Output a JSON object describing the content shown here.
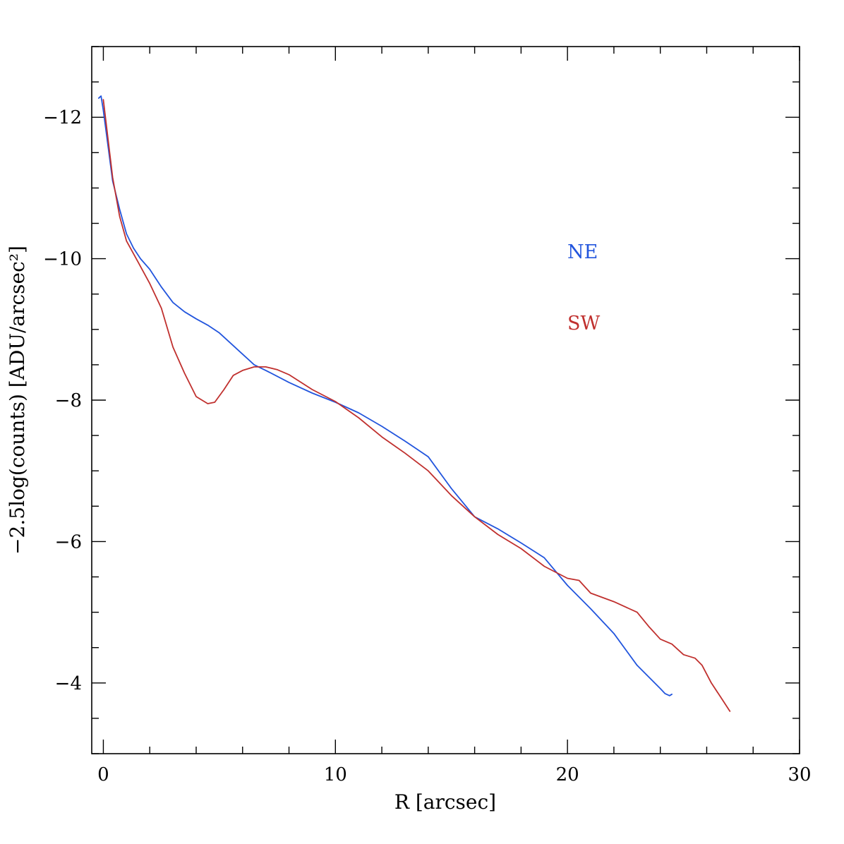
{
  "chart_data": {
    "type": "line",
    "title": "",
    "xlabel": "R [arcsec]",
    "ylabel": "−2.5log(counts) [ADU/arcsec²]",
    "xlim": [
      -0.5,
      30
    ],
    "ylim": [
      -3,
      -13
    ],
    "y_inverted": true,
    "grid": false,
    "x_ticks": {
      "major": [
        0,
        10,
        20,
        30
      ],
      "minor_step": 2,
      "labels": [
        "0",
        "10",
        "20",
        "30"
      ]
    },
    "y_ticks": {
      "major": [
        -12,
        -10,
        -8,
        -6,
        -4
      ],
      "minor_step": 0.5,
      "labels": [
        "−12",
        "−10",
        "−8",
        "−6",
        "−4"
      ]
    },
    "legend": {
      "placement": "right-middle",
      "entries": [
        {
          "label": "NE",
          "color": "#2255dd"
        },
        {
          "label": "SW",
          "color": "#c0302e"
        }
      ]
    },
    "series": [
      {
        "name": "NE",
        "color": "#2255dd",
        "x": [
          -0.2,
          -0.1,
          0.0,
          0.2,
          0.4,
          0.7,
          1.0,
          1.3,
          1.6,
          2.0,
          2.5,
          3.0,
          3.5,
          4.0,
          4.5,
          5.0,
          5.5,
          6.0,
          6.5,
          7.0,
          8.0,
          9.0,
          10.0,
          11.0,
          12.0,
          13.0,
          14.0,
          15.0,
          16.0,
          17.0,
          18.0,
          19.0,
          20.0,
          21.0,
          22.0,
          23.0,
          24.0,
          24.2,
          24.4,
          24.5
        ],
        "y": [
          -12.27,
          -12.3,
          -12.1,
          -11.6,
          -11.1,
          -10.7,
          -10.35,
          -10.15,
          -10.0,
          -9.85,
          -9.6,
          -9.38,
          -9.25,
          -9.15,
          -9.06,
          -8.95,
          -8.8,
          -8.65,
          -8.5,
          -8.42,
          -8.25,
          -8.1,
          -7.97,
          -7.82,
          -7.63,
          -7.42,
          -7.2,
          -6.75,
          -6.35,
          -6.18,
          -5.98,
          -5.77,
          -5.38,
          -5.05,
          -4.7,
          -4.25,
          -3.92,
          -3.85,
          -3.82,
          -3.84
        ]
      },
      {
        "name": "SW",
        "color": "#c0302e",
        "x": [
          0.0,
          0.2,
          0.4,
          0.7,
          1.0,
          1.5,
          2.0,
          2.5,
          3.0,
          3.5,
          4.0,
          4.5,
          4.8,
          5.2,
          5.6,
          6.0,
          6.5,
          7.0,
          7.5,
          8.0,
          9.0,
          10.0,
          11.0,
          12.0,
          13.0,
          14.0,
          15.0,
          16.0,
          17.0,
          18.0,
          19.0,
          20.0,
          20.5,
          21.0,
          22.0,
          23.0,
          23.5,
          24.0,
          24.5,
          25.0,
          25.5,
          25.8,
          26.2,
          26.6,
          27.0
        ],
        "y": [
          -12.25,
          -11.7,
          -11.15,
          -10.6,
          -10.25,
          -9.95,
          -9.65,
          -9.3,
          -8.75,
          -8.38,
          -8.05,
          -7.95,
          -7.97,
          -8.15,
          -8.35,
          -8.42,
          -8.47,
          -8.47,
          -8.43,
          -8.36,
          -8.15,
          -7.98,
          -7.75,
          -7.48,
          -7.25,
          -7.0,
          -6.65,
          -6.35,
          -6.1,
          -5.9,
          -5.65,
          -5.48,
          -5.45,
          -5.27,
          -5.15,
          -5.0,
          -4.8,
          -4.62,
          -4.55,
          -4.4,
          -4.35,
          -4.25,
          -4.0,
          -3.8,
          -3.6
        ]
      }
    ]
  }
}
